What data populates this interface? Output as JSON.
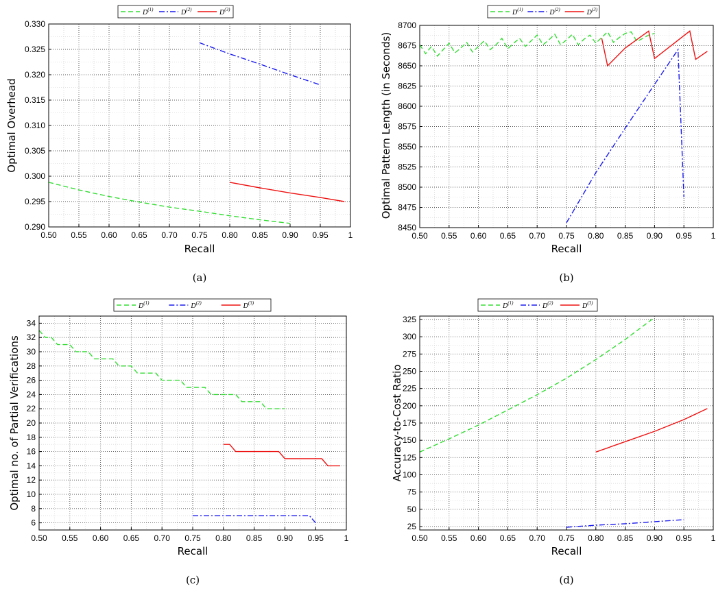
{
  "chart_data": [
    {
      "type": "line",
      "caption": "(a)",
      "xlabel": "Recall",
      "ylabel": "Optimal Overhead",
      "xlim": [
        0.5,
        1.0
      ],
      "ylim": [
        0.29,
        0.33
      ],
      "xticks": [
        "0.50",
        "0.55",
        "0.60",
        "0.65",
        "0.70",
        "0.75",
        "0.80",
        "0.85",
        "0.90",
        "0.95",
        "1"
      ],
      "yticks": [
        "0.290",
        "0.295",
        "0.300",
        "0.305",
        "0.310",
        "0.315",
        "0.320",
        "0.325",
        "0.330"
      ],
      "grid": true,
      "legend_position": "top",
      "series": [
        {
          "name": "D",
          "sup": "(1)",
          "color": "#33dd33",
          "dash": "7,4",
          "x": [
            0.5,
            0.55,
            0.6,
            0.65,
            0.7,
            0.75,
            0.8,
            0.85,
            0.9
          ],
          "y": [
            0.2988,
            0.2973,
            0.296,
            0.2949,
            0.2939,
            0.2931,
            0.2922,
            0.2914,
            0.2907
          ]
        },
        {
          "name": "D",
          "sup": "(2)",
          "color": "#1a1aee",
          "dash": "8,3,2,3",
          "x": [
            0.75,
            0.8,
            0.85,
            0.9,
            0.95
          ],
          "y": [
            0.3263,
            0.3241,
            0.3221,
            0.32,
            0.318
          ]
        },
        {
          "name": "D",
          "sup": "(3)",
          "color": "#ee1111",
          "dash": "",
          "x": [
            0.8,
            0.85,
            0.9,
            0.95,
            0.99
          ],
          "y": [
            0.2988,
            0.2977,
            0.2967,
            0.2958,
            0.295
          ]
        }
      ]
    },
    {
      "type": "line",
      "caption": "(b)",
      "xlabel": "Recall",
      "ylabel": "Optimal Pattern Length (in Seconds)",
      "xlim": [
        0.5,
        1.0
      ],
      "ylim": [
        8450,
        8700
      ],
      "xticks": [
        "0.50",
        "0.55",
        "0.60",
        "0.65",
        "0.70",
        "0.75",
        "0.80",
        "0.85",
        "0.90",
        "0.95",
        "1"
      ],
      "yticks": [
        "8450",
        "8475",
        "8500",
        "8525",
        "8550",
        "8575",
        "8600",
        "8625",
        "8650",
        "8675",
        "8700"
      ],
      "grid": true,
      "legend_position": "top",
      "series": [
        {
          "name": "D",
          "sup": "(1)",
          "color": "#33dd33",
          "dash": "7,4",
          "x": [
            0.5,
            0.51,
            0.52,
            0.53,
            0.54,
            0.55,
            0.56,
            0.57,
            0.58,
            0.59,
            0.6,
            0.61,
            0.62,
            0.63,
            0.64,
            0.65,
            0.66,
            0.67,
            0.68,
            0.69,
            0.7,
            0.71,
            0.72,
            0.73,
            0.74,
            0.75,
            0.76,
            0.77,
            0.78,
            0.79,
            0.8,
            0.81,
            0.82,
            0.83,
            0.84,
            0.85,
            0.86,
            0.87,
            0.88,
            0.89,
            0.9
          ],
          "y": [
            8676,
            8665,
            8674,
            8662,
            8670,
            8678,
            8666,
            8672,
            8679,
            8667,
            8674,
            8681,
            8670,
            8676,
            8684,
            8671,
            8678,
            8684,
            8674,
            8681,
            8688,
            8676,
            8682,
            8689,
            8676,
            8682,
            8689,
            8676,
            8683,
            8688,
            8678,
            8685,
            8692,
            8679,
            8685,
            8690,
            8692,
            8680,
            8684,
            8688,
            8690
          ]
        },
        {
          "name": "D",
          "sup": "(2)",
          "color": "#1a1aee",
          "dash": "8,3,2,3",
          "x": [
            0.75,
            0.8,
            0.85,
            0.9,
            0.94,
            0.95
          ],
          "y": [
            8456,
            8518,
            8573,
            8627,
            8670,
            8488
          ]
        },
        {
          "name": "D",
          "sup": "(3)",
          "color": "#ee1111",
          "dash": "",
          "x": [
            0.81,
            0.82,
            0.85,
            0.89,
            0.9,
            0.96,
            0.97,
            0.99
          ],
          "y": [
            8684,
            8650,
            8672,
            8693,
            8659,
            8693,
            8658,
            8668
          ]
        }
      ]
    },
    {
      "type": "line",
      "caption": "(c)",
      "xlabel": "Recall",
      "ylabel": "Optimal no. of Partial Verifications",
      "xlim": [
        0.5,
        1.0
      ],
      "ylim": [
        5,
        35
      ],
      "xticks": [
        "0.50",
        "0.55",
        "0.60",
        "0.65",
        "0.70",
        "0.75",
        "0.80",
        "0.85",
        "0.90",
        "0.95",
        "1"
      ],
      "yticks": [
        "6",
        "8",
        "10",
        "12",
        "14",
        "16",
        "18",
        "20",
        "22",
        "24",
        "26",
        "28",
        "30",
        "32",
        "34"
      ],
      "grid": true,
      "legend_position": "top",
      "series": [
        {
          "name": "D",
          "sup": "(1)",
          "color": "#33dd33",
          "dash": "7,4",
          "x": [
            0.5,
            0.51,
            0.52,
            0.53,
            0.54,
            0.55,
            0.56,
            0.57,
            0.58,
            0.59,
            0.6,
            0.61,
            0.62,
            0.63,
            0.64,
            0.65,
            0.66,
            0.67,
            0.68,
            0.69,
            0.7,
            0.71,
            0.72,
            0.73,
            0.74,
            0.75,
            0.76,
            0.77,
            0.78,
            0.79,
            0.8,
            0.81,
            0.82,
            0.83,
            0.84,
            0.85,
            0.86,
            0.87,
            0.88,
            0.89,
            0.9
          ],
          "y": [
            33,
            32,
            32,
            31,
            31,
            31,
            30,
            30,
            30,
            29,
            29,
            29,
            29,
            28,
            28,
            28,
            27,
            27,
            27,
            27,
            26,
            26,
            26,
            26,
            25,
            25,
            25,
            25,
            24,
            24,
            24,
            24,
            24,
            23,
            23,
            23,
            23,
            22,
            22,
            22,
            22
          ]
        },
        {
          "name": "D",
          "sup": "(2)",
          "color": "#1a1aee",
          "dash": "8,3,2,3",
          "x": [
            0.75,
            0.8,
            0.85,
            0.9,
            0.94,
            0.95
          ],
          "y": [
            7,
            7,
            7,
            7,
            7,
            6
          ]
        },
        {
          "name": "D",
          "sup": "(3)",
          "color": "#ee1111",
          "dash": "",
          "x": [
            0.8,
            0.81,
            0.82,
            0.85,
            0.89,
            0.9,
            0.93,
            0.96,
            0.97,
            0.99
          ],
          "y": [
            17,
            17,
            16,
            16,
            16,
            15,
            15,
            15,
            14,
            14
          ]
        }
      ]
    },
    {
      "type": "line",
      "caption": "(d)",
      "xlabel": "Recall",
      "ylabel": "Accuracy-to-Cost Ratio",
      "xlim": [
        0.5,
        1.0
      ],
      "ylim": [
        20,
        330
      ],
      "xticks": [
        "0.50",
        "0.55",
        "0.60",
        "0.65",
        "0.70",
        "0.75",
        "0.80",
        "0.85",
        "0.90",
        "0.95",
        "1"
      ],
      "yticks": [
        "25",
        "50",
        "75",
        "100",
        "125",
        "150",
        "175",
        "200",
        "225",
        "250",
        "275",
        "300",
        "325"
      ],
      "grid": true,
      "legend_position": "top",
      "series": [
        {
          "name": "D",
          "sup": "(1)",
          "color": "#33dd33",
          "dash": "7,4",
          "x": [
            0.5,
            0.55,
            0.6,
            0.65,
            0.7,
            0.75,
            0.8,
            0.85,
            0.9
          ],
          "y": [
            133,
            152,
            172,
            194,
            216,
            240,
            267,
            296,
            328
          ]
        },
        {
          "name": "D",
          "sup": "(2)",
          "color": "#1a1aee",
          "dash": "8,3,2,3",
          "x": [
            0.75,
            0.8,
            0.85,
            0.9,
            0.95
          ],
          "y": [
            24,
            27,
            29,
            32,
            35
          ]
        },
        {
          "name": "D",
          "sup": "(3)",
          "color": "#ee1111",
          "dash": "",
          "x": [
            0.8,
            0.85,
            0.9,
            0.95,
            0.99
          ],
          "y": [
            133,
            148,
            163,
            180,
            196
          ]
        }
      ]
    }
  ]
}
